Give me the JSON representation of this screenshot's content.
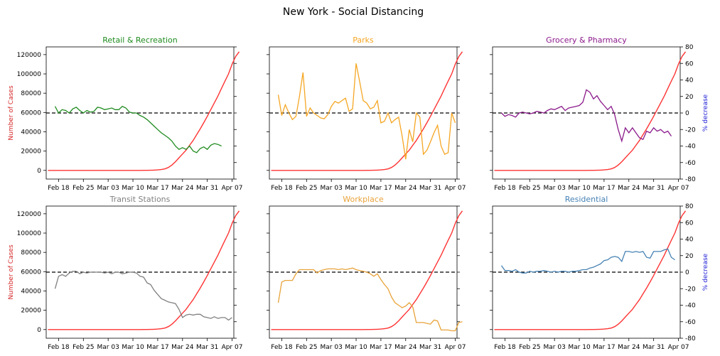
{
  "suptitle": "New York - Social Distancing",
  "colors": {
    "cases": "#ff3333",
    "left_axis_label": "#d62728",
    "right_axis_label": "#1f1fd6",
    "baseline": "#000000"
  },
  "axes": {
    "left_label": "Number of Cases",
    "right_label": "% decrease",
    "left_ticks": [
      0,
      20000,
      40000,
      60000,
      80000,
      100000,
      120000
    ],
    "left_lim": [
      -9000,
      128000
    ],
    "right_ticks": [
      -80,
      -60,
      -40,
      -20,
      0,
      20,
      40,
      60,
      80
    ],
    "right_lim": [
      -80,
      80
    ],
    "x_ticks": [
      {
        "day": 4,
        "label": "Feb 18"
      },
      {
        "day": 11,
        "label": "Feb 25"
      },
      {
        "day": 18,
        "label": "Mar 03"
      },
      {
        "day": 25,
        "label": "Mar 10"
      },
      {
        "day": 32,
        "label": "Mar 17"
      },
      {
        "day": 39,
        "label": "Mar 24"
      },
      {
        "day": 46,
        "label": "Mar 31"
      },
      {
        "day": 53,
        "label": "Apr 07"
      }
    ],
    "x_lim": [
      0.5,
      53.5
    ],
    "x_start_date": "Feb 14"
  },
  "chart_data": {
    "type": "line",
    "baseline_pct": 0,
    "cases": [
      0,
      0,
      0,
      0,
      0,
      0,
      0,
      0,
      0,
      0,
      0,
      0,
      0,
      0,
      0,
      0,
      0,
      0,
      0,
      0,
      0,
      0,
      0,
      0,
      0,
      0,
      10,
      30,
      80,
      150,
      300,
      500,
      900,
      1500,
      3000,
      5500,
      9000,
      13000,
      17000,
      21000,
      26000,
      31000,
      37000,
      43000,
      49500,
      56000,
      63000,
      70000,
      77000,
      85000,
      92500,
      100000,
      110000,
      118000,
      123000
    ],
    "panels": [
      {
        "name": "Retail & Recreation",
        "color": "#1f8b1f",
        "values": [
          8,
          0,
          4,
          3,
          0,
          5,
          7,
          3,
          0,
          3,
          1,
          2,
          7,
          6,
          4,
          5,
          6,
          4,
          4,
          8,
          6,
          1,
          0,
          0,
          -3,
          -5,
          -8,
          -12,
          -16,
          -20,
          -24,
          -27,
          -30,
          -34,
          -40,
          -44,
          -42,
          -44,
          -40,
          -46,
          -48,
          -43,
          -41,
          -44,
          -39,
          -37,
          -38,
          -40
        ]
      },
      {
        "name": "Parks",
        "color": "#f5a623",
        "values": [
          22,
          -3,
          10,
          0,
          -8,
          -4,
          20,
          49,
          -4,
          6,
          0,
          -3,
          -6,
          -7,
          -2,
          8,
          14,
          12,
          15,
          18,
          2,
          5,
          60,
          38,
          15,
          12,
          5,
          7,
          15,
          -12,
          -10,
          0,
          -12,
          -8,
          -5,
          -28,
          -56,
          -20,
          -35,
          0,
          -5,
          -50,
          -45,
          -35,
          -24,
          -15,
          -40,
          -50,
          -48,
          0,
          -12
        ]
      },
      {
        "name": "Grocery & Pharmacy",
        "color": "#8b1a8b",
        "values": [
          0,
          -4,
          -2,
          -3,
          -5,
          0,
          1,
          0,
          -1,
          0,
          2,
          1,
          0,
          3,
          5,
          4,
          6,
          8,
          3,
          6,
          7,
          8,
          9,
          13,
          28,
          25,
          17,
          21,
          14,
          9,
          4,
          8,
          -2,
          -20,
          -34,
          -18,
          -24,
          -18,
          -24,
          -30,
          -32,
          -22,
          -24,
          -18,
          -22,
          -20,
          -24,
          -22,
          -28
        ]
      },
      {
        "name": "Transit Stations",
        "color": "#808080",
        "values": [
          -20,
          -5,
          -3,
          -5,
          -1,
          1,
          1,
          -2,
          0,
          -1,
          0,
          0,
          0,
          0,
          -1,
          0,
          -2,
          0,
          0,
          -2,
          -1,
          0,
          0,
          -1,
          -5,
          -6,
          -13,
          -15,
          -22,
          -27,
          -32,
          -34,
          -36,
          -37,
          -38,
          -45,
          -55,
          -52,
          -51,
          -52,
          -51,
          -51,
          -54,
          -55,
          -56,
          -54,
          -56,
          -55,
          -55,
          -58,
          -55
        ]
      },
      {
        "name": "Workplace",
        "color": "#e8a33a",
        "values": [
          -37,
          -12,
          -10,
          -10,
          -10,
          -2,
          3,
          3,
          3,
          3,
          3,
          -1,
          2,
          3,
          4,
          4,
          4,
          3,
          4,
          3,
          4,
          5,
          3,
          2,
          1,
          0,
          -2,
          -5,
          -2,
          -9,
          -15,
          -20,
          -30,
          -37,
          -40,
          -43,
          -41,
          -37,
          -42,
          -61,
          -61,
          -61,
          -62,
          -63,
          -58,
          -59,
          -70,
          -70,
          -70,
          -71,
          -71,
          -61,
          -60
        ]
      },
      {
        "name": "Residential",
        "color": "#4682b4",
        "values": [
          8,
          2,
          2,
          1,
          3,
          0,
          -1,
          -1,
          1,
          0,
          1,
          1,
          2,
          1,
          0,
          1,
          0,
          1,
          1,
          0,
          1,
          1,
          2,
          3,
          3,
          5,
          6,
          8,
          10,
          14,
          15,
          18,
          19,
          18,
          13,
          25,
          25,
          24,
          25,
          24,
          25,
          18,
          17,
          25,
          25,
          25,
          27,
          28,
          18,
          15
        ]
      }
    ]
  }
}
